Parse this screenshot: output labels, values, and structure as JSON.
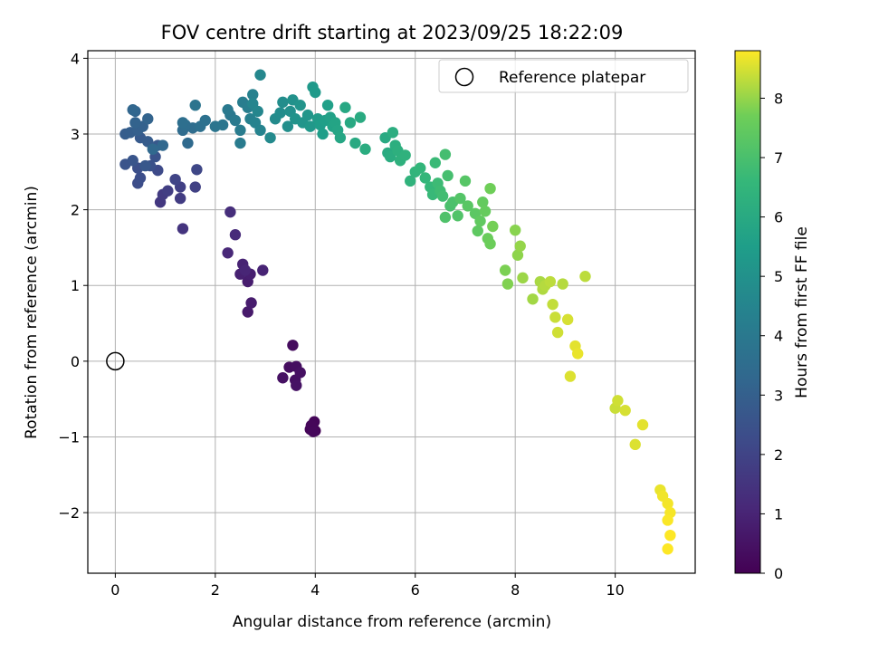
{
  "chart_data": {
    "type": "scatter",
    "title": "FOV centre drift starting at 2023/09/25 18:22:09",
    "xlabel": "Angular distance from reference (arcmin)",
    "ylabel": "Rotation from reference (arcmin)",
    "xlim": [
      -0.55,
      11.6
    ],
    "ylim": [
      -2.8,
      4.1
    ],
    "xticks": [
      0,
      2,
      4,
      6,
      8,
      10
    ],
    "yticks": [
      -2,
      -1,
      0,
      1,
      2,
      3,
      4
    ],
    "xtick_labels": [
      "0",
      "2",
      "4",
      "6",
      "8",
      "10"
    ],
    "ytick_labels": [
      "−2",
      "−1",
      "0",
      "1",
      "2",
      "3",
      "4"
    ],
    "grid": true,
    "colormap": "viridis",
    "colorbar": {
      "label": "Hours from first FF file",
      "range": [
        0,
        8.8
      ],
      "ticks": [
        0,
        1,
        2,
        3,
        4,
        5,
        6,
        7,
        8
      ],
      "tick_labels": [
        "0",
        "1",
        "2",
        "3",
        "4",
        "5",
        "6",
        "7",
        "8"
      ]
    },
    "legend": {
      "position": "top-right",
      "label": "Reference platepar"
    },
    "reference_point": {
      "x": 0,
      "y": 0
    },
    "points": [
      [
        3.95,
        -0.88,
        0.05
      ],
      [
        4.0,
        -0.92,
        0.07
      ],
      [
        3.9,
        -0.9,
        0.1
      ],
      [
        3.98,
        -0.8,
        0.12
      ],
      [
        3.92,
        -0.85,
        0.15
      ],
      [
        3.96,
        -0.93,
        0.18
      ],
      [
        3.55,
        0.21,
        0.3
      ],
      [
        3.48,
        -0.08,
        0.35
      ],
      [
        3.62,
        -0.07,
        0.38
      ],
      [
        3.6,
        -0.25,
        0.4
      ],
      [
        3.7,
        -0.15,
        0.42
      ],
      [
        3.35,
        -0.22,
        0.45
      ],
      [
        3.62,
        -0.32,
        0.48
      ],
      [
        2.65,
        0.65,
        0.7
      ],
      [
        2.72,
        0.77,
        0.75
      ],
      [
        2.65,
        1.05,
        0.8
      ],
      [
        2.7,
        1.15,
        0.85
      ],
      [
        2.5,
        1.15,
        0.9
      ],
      [
        2.55,
        1.28,
        0.95
      ],
      [
        2.95,
        1.2,
        1.0
      ],
      [
        2.6,
        1.2,
        1.05
      ],
      [
        2.25,
        1.43,
        1.1
      ],
      [
        2.4,
        1.67,
        1.2
      ],
      [
        2.3,
        1.97,
        1.3
      ],
      [
        1.35,
        1.75,
        1.5
      ],
      [
        0.9,
        2.1,
        1.6
      ],
      [
        0.95,
        2.2,
        1.7
      ],
      [
        1.3,
        2.15,
        1.75
      ],
      [
        1.05,
        2.25,
        1.8
      ],
      [
        1.3,
        2.3,
        1.85
      ],
      [
        1.6,
        2.3,
        1.9
      ],
      [
        1.2,
        2.4,
        2.0
      ],
      [
        1.63,
        2.53,
        2.1
      ],
      [
        0.85,
        2.52,
        2.2
      ],
      [
        0.45,
        2.35,
        2.3
      ],
      [
        0.5,
        2.42,
        2.35
      ],
      [
        0.45,
        2.55,
        2.4
      ],
      [
        0.7,
        2.58,
        2.45
      ],
      [
        0.8,
        2.7,
        2.5
      ],
      [
        0.2,
        2.6,
        2.55
      ],
      [
        0.35,
        2.65,
        2.6
      ],
      [
        0.6,
        2.58,
        2.7
      ],
      [
        0.85,
        2.85,
        2.75
      ],
      [
        0.5,
        2.95,
        2.8
      ],
      [
        0.65,
        2.9,
        2.85
      ],
      [
        0.2,
        3.0,
        2.9
      ],
      [
        0.3,
        3.02,
        2.95
      ],
      [
        0.45,
        3.05,
        3.0
      ],
      [
        0.55,
        3.1,
        3.05
      ],
      [
        0.4,
        3.15,
        3.1
      ],
      [
        0.65,
        3.2,
        3.15
      ],
      [
        0.4,
        3.3,
        3.2
      ],
      [
        0.35,
        3.32,
        3.25
      ],
      [
        0.95,
        2.85,
        3.3
      ],
      [
        0.75,
        2.8,
        3.35
      ],
      [
        1.45,
        2.88,
        3.4
      ],
      [
        1.35,
        3.05,
        3.45
      ],
      [
        1.55,
        3.08,
        3.5
      ],
      [
        1.4,
        3.12,
        3.55
      ],
      [
        1.35,
        3.15,
        3.6
      ],
      [
        1.7,
        3.1,
        3.65
      ],
      [
        1.8,
        3.18,
        3.7
      ],
      [
        1.6,
        3.38,
        3.8
      ],
      [
        2.0,
        3.1,
        3.85
      ],
      [
        2.15,
        3.12,
        3.9
      ],
      [
        2.3,
        3.25,
        3.95
      ],
      [
        2.25,
        3.32,
        4.0
      ],
      [
        2.4,
        3.18,
        4.05
      ],
      [
        2.5,
        2.88,
        4.1
      ],
      [
        2.5,
        3.05,
        4.15
      ],
      [
        2.55,
        3.42,
        4.2
      ],
      [
        2.65,
        3.35,
        4.25
      ],
      [
        2.7,
        3.2,
        4.3
      ],
      [
        2.75,
        3.52,
        4.35
      ],
      [
        2.8,
        3.15,
        4.4
      ],
      [
        2.9,
        3.05,
        4.45
      ],
      [
        2.75,
        3.4,
        4.5
      ],
      [
        2.85,
        3.3,
        4.55
      ],
      [
        2.9,
        3.78,
        4.6
      ],
      [
        3.1,
        2.95,
        4.7
      ],
      [
        3.2,
        3.2,
        4.75
      ],
      [
        3.3,
        3.28,
        4.8
      ],
      [
        3.35,
        3.42,
        4.85
      ],
      [
        3.45,
        3.1,
        4.9
      ],
      [
        3.5,
        3.3,
        4.95
      ],
      [
        3.55,
        3.45,
        5.0
      ],
      [
        3.6,
        3.2,
        5.05
      ],
      [
        3.7,
        3.38,
        5.1
      ],
      [
        3.75,
        3.15,
        5.15
      ],
      [
        3.85,
        3.25,
        5.2
      ],
      [
        3.9,
        3.1,
        5.25
      ],
      [
        3.95,
        3.62,
        5.3
      ],
      [
        4.0,
        3.55,
        5.35
      ],
      [
        4.05,
        3.2,
        5.4
      ],
      [
        4.1,
        3.12,
        5.45
      ],
      [
        4.15,
        3.0,
        5.5
      ],
      [
        4.2,
        3.18,
        5.55
      ],
      [
        4.25,
        3.38,
        5.6
      ],
      [
        4.3,
        3.22,
        5.65
      ],
      [
        4.35,
        3.1,
        5.7
      ],
      [
        4.4,
        3.15,
        5.75
      ],
      [
        4.45,
        3.05,
        5.8
      ],
      [
        4.5,
        2.95,
        5.85
      ],
      [
        4.6,
        3.35,
        5.9
      ],
      [
        4.7,
        3.15,
        5.95
      ],
      [
        4.8,
        2.88,
        6.0
      ],
      [
        4.9,
        3.22,
        6.05
      ],
      [
        5.0,
        2.8,
        6.1
      ],
      [
        5.4,
        2.95,
        6.0
      ],
      [
        5.45,
        2.75,
        6.05
      ],
      [
        5.5,
        2.7,
        6.1
      ],
      [
        5.55,
        3.02,
        6.15
      ],
      [
        5.6,
        2.85,
        6.2
      ],
      [
        5.65,
        2.78,
        6.25
      ],
      [
        5.7,
        2.65,
        6.3
      ],
      [
        5.8,
        2.72,
        6.35
      ],
      [
        5.9,
        2.38,
        6.4
      ],
      [
        6.0,
        2.5,
        6.45
      ],
      [
        6.1,
        2.55,
        6.5
      ],
      [
        6.2,
        2.42,
        6.55
      ],
      [
        6.3,
        2.3,
        6.6
      ],
      [
        6.35,
        2.2,
        6.65
      ],
      [
        6.4,
        2.62,
        6.7
      ],
      [
        6.45,
        2.35,
        6.75
      ],
      [
        6.5,
        2.25,
        6.8
      ],
      [
        6.55,
        2.18,
        6.85
      ],
      [
        6.6,
        2.73,
        6.9
      ],
      [
        6.65,
        2.45,
        6.95
      ],
      [
        6.7,
        2.05,
        7.0
      ],
      [
        6.75,
        2.1,
        7.05
      ],
      [
        6.6,
        1.9,
        7.1
      ],
      [
        6.85,
        1.92,
        7.15
      ],
      [
        6.9,
        2.15,
        7.2
      ],
      [
        7.0,
        2.38,
        7.25
      ],
      [
        7.05,
        2.05,
        7.3
      ],
      [
        7.2,
        1.95,
        7.35
      ],
      [
        7.25,
        1.72,
        7.4
      ],
      [
        7.3,
        1.85,
        7.45
      ],
      [
        7.35,
        2.1,
        7.5
      ],
      [
        7.4,
        1.98,
        7.55
      ],
      [
        7.45,
        1.62,
        7.6
      ],
      [
        7.5,
        1.55,
        7.65
      ],
      [
        7.5,
        2.28,
        7.7
      ],
      [
        7.55,
        1.78,
        7.75
      ],
      [
        7.8,
        1.2,
        7.8
      ],
      [
        7.85,
        1.02,
        7.85
      ],
      [
        8.0,
        1.73,
        7.9
      ],
      [
        8.05,
        1.4,
        7.95
      ],
      [
        8.1,
        1.52,
        8.0
      ],
      [
        8.15,
        1.1,
        8.05
      ],
      [
        8.35,
        0.82,
        8.1
      ],
      [
        8.5,
        1.05,
        8.15
      ],
      [
        8.55,
        0.95,
        8.2
      ],
      [
        8.6,
        1.0,
        8.25
      ],
      [
        8.7,
        1.05,
        8.3
      ],
      [
        8.75,
        0.75,
        8.35
      ],
      [
        8.8,
        0.58,
        8.4
      ],
      [
        8.85,
        0.38,
        8.45
      ],
      [
        9.05,
        0.55,
        8.5
      ],
      [
        9.1,
        -0.2,
        8.55
      ],
      [
        9.2,
        0.2,
        8.6
      ],
      [
        9.25,
        0.1,
        8.65
      ],
      [
        9.4,
        1.12,
        8.3
      ],
      [
        8.95,
        1.02,
        8.25
      ],
      [
        10.0,
        -0.62,
        8.4
      ],
      [
        10.05,
        -0.52,
        8.45
      ],
      [
        10.2,
        -0.65,
        8.5
      ],
      [
        10.4,
        -1.1,
        8.55
      ],
      [
        10.55,
        -0.84,
        8.6
      ],
      [
        10.9,
        -1.7,
        8.65
      ],
      [
        10.95,
        -1.78,
        8.7
      ],
      [
        11.05,
        -1.88,
        8.72
      ],
      [
        11.1,
        -2.0,
        8.75
      ],
      [
        11.05,
        -2.1,
        8.78
      ],
      [
        11.1,
        -2.3,
        8.8
      ],
      [
        11.05,
        -2.48,
        8.82
      ]
    ]
  }
}
